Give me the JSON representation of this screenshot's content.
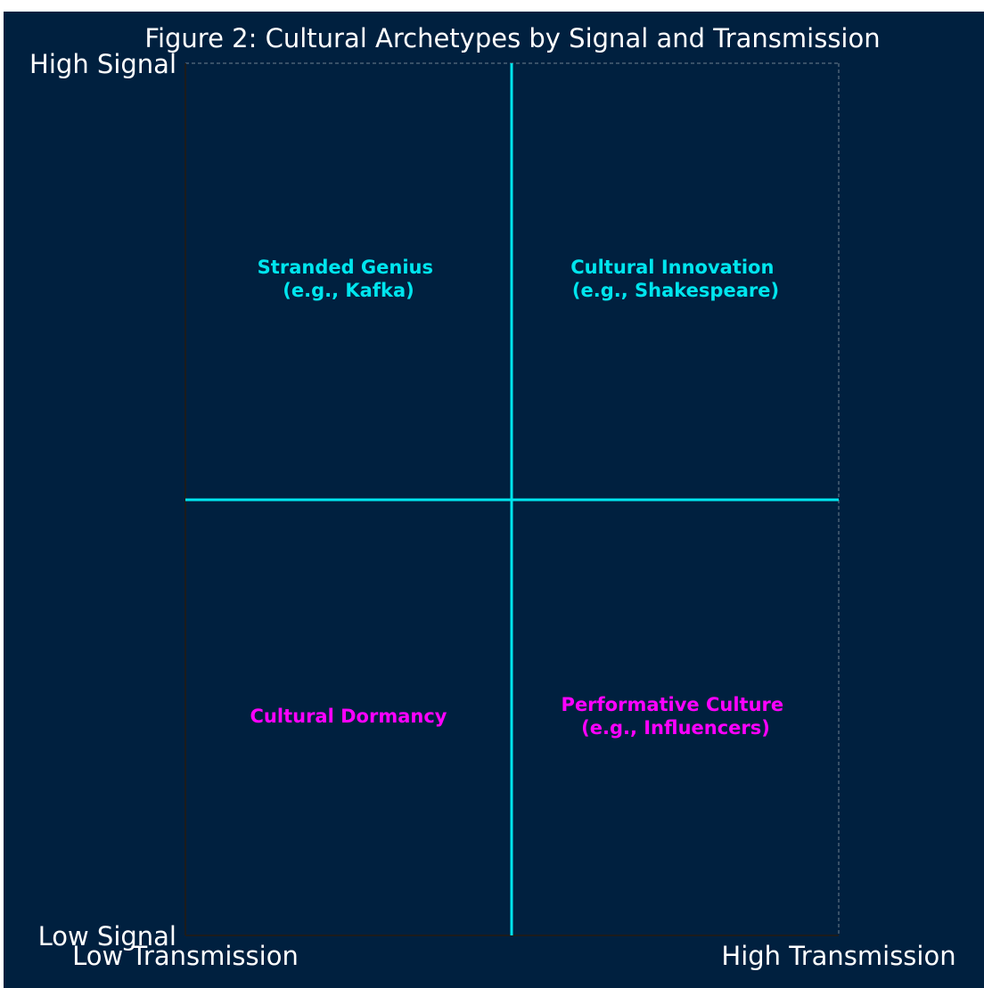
{
  "title": "Figure 2: Cultural Archetypes by Signal and Transmission",
  "y_axis": {
    "high": "High Signal",
    "low": "Low Signal"
  },
  "x_axis": {
    "low": "Low Transmission",
    "high": "High Transmission"
  },
  "quadrants": [
    {
      "lines": [
        "Stranded Genius",
        "(e.g., Kafka)"
      ]
    },
    {
      "lines": [
        "Cultural Innovation",
        "(e.g., Shakespeare)"
      ]
    },
    {
      "lines": [
        "Cultural Dormancy"
      ]
    },
    {
      "lines": [
        "Performative Culture",
        "(e.g., Influencers)"
      ]
    }
  ]
}
